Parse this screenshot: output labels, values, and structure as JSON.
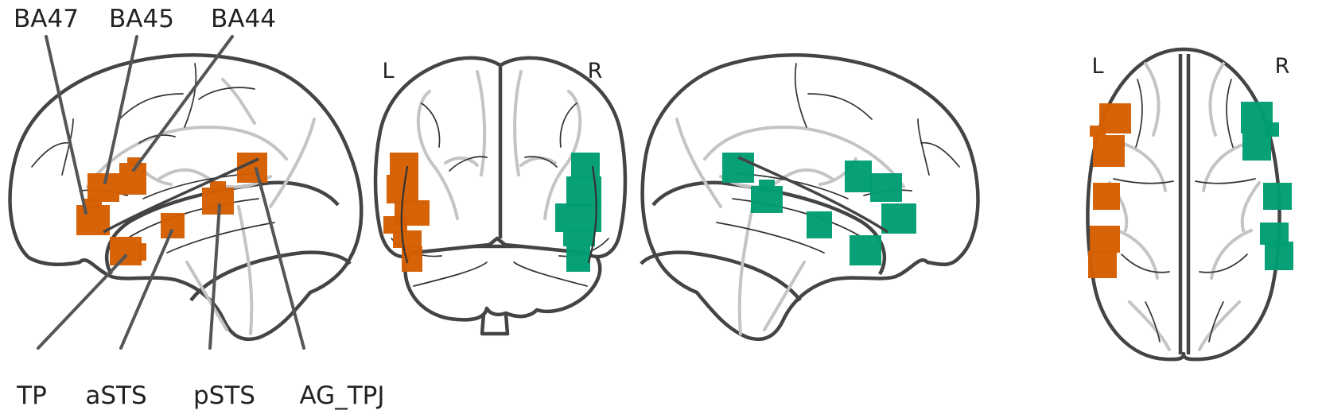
{
  "colors": {
    "left_roi": "#d55e00",
    "right_roi": "#009e73",
    "outline": "#444444"
  },
  "hemisphere_labels": {
    "left": "L",
    "right": "R"
  },
  "regions": [
    {
      "id": "ba47",
      "label": "BA47"
    },
    {
      "id": "ba45",
      "label": "BA45"
    },
    {
      "id": "ba44",
      "label": "BA44"
    },
    {
      "id": "tp",
      "label": "TP"
    },
    {
      "id": "asts",
      "label": "aSTS"
    },
    {
      "id": "psts",
      "label": "pSTS"
    },
    {
      "id": "ag_tpj",
      "label": "AG_TPJ"
    }
  ],
  "views": [
    {
      "id": "left-sagittal",
      "hemisphere": "left"
    },
    {
      "id": "coronal",
      "hemisphere": "both"
    },
    {
      "id": "right-sagittal",
      "hemisphere": "right"
    },
    {
      "id": "axial",
      "hemisphere": "both"
    }
  ]
}
